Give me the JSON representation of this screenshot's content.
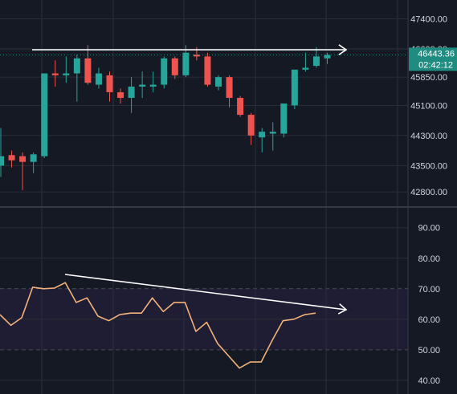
{
  "colors": {
    "background": "#151924",
    "grid": "#2a2e39",
    "axis_line": "#363a45",
    "bull": "#26a69a",
    "bear": "#ef5350",
    "rsi_line": "#f2b27a",
    "rsi_band_fill": "#1f1d33",
    "rsi_band_line": "#4a4a5a",
    "trendline": "#ffffff",
    "price_tag_bg": "#1e8c80",
    "axis_text": "#d1d4dc"
  },
  "chart_data": [
    {
      "type": "candlestick",
      "pane": "price",
      "ylim": [
        42400,
        47900
      ],
      "y_ticks": [
        "47400.00",
        "46600.00",
        "45850.00",
        "45100.00",
        "44300.00",
        "43500.00",
        "42800.00"
      ],
      "y_tick_values": [
        47400,
        46600,
        45850,
        45100,
        44300,
        43500,
        42800
      ],
      "last_price": "46443.36",
      "countdown": "02:42:12",
      "candles": [
        {
          "o": 43500,
          "h": 44500,
          "l": 43200,
          "c": 43750
        },
        {
          "o": 43780,
          "h": 43900,
          "l": 43450,
          "c": 43640
        },
        {
          "o": 43750,
          "h": 43850,
          "l": 42850,
          "c": 43600
        },
        {
          "o": 43600,
          "h": 43850,
          "l": 43300,
          "c": 43800
        },
        {
          "o": 43750,
          "h": 45950,
          "l": 43700,
          "c": 45950
        },
        {
          "o": 45950,
          "h": 46300,
          "l": 45600,
          "c": 45900
        },
        {
          "o": 45900,
          "h": 46400,
          "l": 45700,
          "c": 45950
        },
        {
          "o": 45950,
          "h": 46450,
          "l": 45200,
          "c": 46350
        },
        {
          "o": 46350,
          "h": 46700,
          "l": 45650,
          "c": 45700
        },
        {
          "o": 45650,
          "h": 46100,
          "l": 45550,
          "c": 45950
        },
        {
          "o": 45900,
          "h": 46000,
          "l": 45200,
          "c": 45450
        },
        {
          "o": 45450,
          "h": 45550,
          "l": 45150,
          "c": 45300
        },
        {
          "o": 45300,
          "h": 45850,
          "l": 44900,
          "c": 45600
        },
        {
          "o": 45600,
          "h": 46000,
          "l": 45300,
          "c": 45650
        },
        {
          "o": 45600,
          "h": 46000,
          "l": 45450,
          "c": 45650
        },
        {
          "o": 45650,
          "h": 46400,
          "l": 45550,
          "c": 46350
        },
        {
          "o": 46350,
          "h": 46400,
          "l": 45800,
          "c": 45900
        },
        {
          "o": 45900,
          "h": 46700,
          "l": 45850,
          "c": 46500
        },
        {
          "o": 46450,
          "h": 46650,
          "l": 46300,
          "c": 46400
        },
        {
          "o": 46400,
          "h": 46500,
          "l": 45600,
          "c": 45650
        },
        {
          "o": 45600,
          "h": 45900,
          "l": 45500,
          "c": 45850
        },
        {
          "o": 45850,
          "h": 45900,
          "l": 45050,
          "c": 45300
        },
        {
          "o": 45300,
          "h": 45350,
          "l": 44800,
          "c": 44850
        },
        {
          "o": 44850,
          "h": 44900,
          "l": 44050,
          "c": 44300
        },
        {
          "o": 44250,
          "h": 44500,
          "l": 43850,
          "c": 44400
        },
        {
          "o": 44350,
          "h": 44650,
          "l": 43900,
          "c": 44400
        },
        {
          "o": 44350,
          "h": 45150,
          "l": 44250,
          "c": 45150
        },
        {
          "o": 45100,
          "h": 46050,
          "l": 45000,
          "c": 46050
        },
        {
          "o": 46050,
          "h": 46500,
          "l": 46000,
          "c": 46100
        },
        {
          "o": 46150,
          "h": 46650,
          "l": 46100,
          "c": 46400
        },
        {
          "o": 46350,
          "h": 46500,
          "l": 46200,
          "c": 46443
        }
      ]
    },
    {
      "type": "line",
      "pane": "rsi",
      "ylim": [
        35.5,
        96.5
      ],
      "y_ticks": [
        "90.00",
        "80.00",
        "70.00",
        "60.00",
        "50.00",
        "40.00"
      ],
      "y_tick_values": [
        90,
        80,
        70,
        60,
        50,
        40
      ],
      "band": [
        50,
        70
      ],
      "values": [
        61.5,
        58.0,
        60.5,
        70.5,
        70.0,
        70.2,
        72.0,
        65.5,
        67.0,
        61.0,
        59.5,
        61.5,
        62.0,
        62.0,
        67.0,
        62.5,
        65.5,
        65.5,
        56.0,
        59.0,
        52.0,
        48.0,
        44.0,
        46.0,
        46.0,
        53.0,
        59.5,
        60.0,
        61.5,
        62.0
      ]
    }
  ]
}
